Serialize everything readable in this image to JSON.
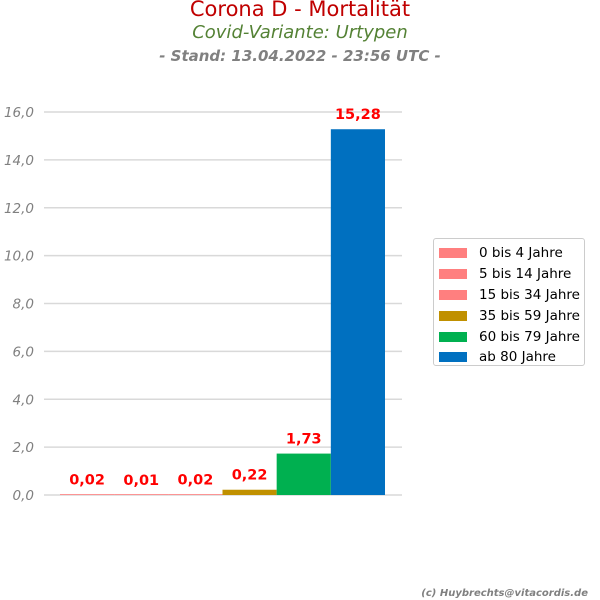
{
  "header": {
    "title": "Corona D - Mortalität",
    "subtitle": "Covid-Variante: Urtypen",
    "stand": "- Stand: 13.04.2022 - 23:56 UTC -"
  },
  "footer": {
    "credit": "(c) Huybrechts@vitacordis.de"
  },
  "colors": {
    "title": "#c00000",
    "subtitle": "#548235",
    "grid": "#d9d9d9",
    "data_label": "#ff0000",
    "tick_label": "#808080"
  },
  "chart_data": {
    "type": "bar",
    "title": "Corona D - Mortalität",
    "subtitle": "Covid-Variante: Urtypen",
    "xlabel": "",
    "ylabel": "",
    "ylim": [
      0,
      16
    ],
    "yticks": [
      0,
      2,
      4,
      6,
      8,
      10,
      12,
      14,
      16
    ],
    "ytick_labels": [
      "0,0",
      "2,0",
      "4,0",
      "6,0",
      "8,0",
      "10,0",
      "12,0",
      "14,0",
      "16,0"
    ],
    "grid": true,
    "legend_position": "right",
    "series": [
      {
        "name": "0 bis 4 Jahre",
        "value": 0.02,
        "label": "0,02",
        "color": "#ff7f7f"
      },
      {
        "name": "5 bis 14 Jahre",
        "value": 0.01,
        "label": "0,01",
        "color": "#ff7f7f"
      },
      {
        "name": "15 bis 34 Jahre",
        "value": 0.02,
        "label": "0,02",
        "color": "#ff7f7f"
      },
      {
        "name": "35 bis 59 Jahre",
        "value": 0.22,
        "label": "0,22",
        "color": "#c09000"
      },
      {
        "name": "60 bis 79 Jahre",
        "value": 1.73,
        "label": "1,73",
        "color": "#00b050"
      },
      {
        "name": "ab 80 Jahre",
        "value": 15.28,
        "label": "15,28",
        "color": "#0070c0"
      }
    ]
  }
}
